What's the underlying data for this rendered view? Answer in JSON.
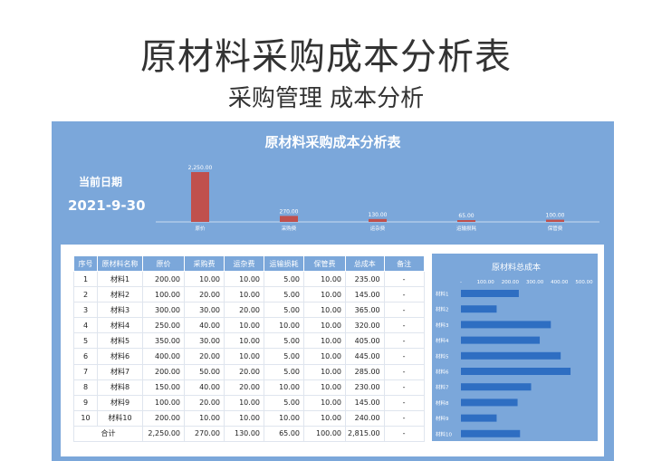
{
  "header": {
    "title": "原材料采购成本分析表",
    "subtitle": "采购管理  成本分析"
  },
  "sheet": {
    "title": "原材料采购成本分析表",
    "date_label": "当前日期",
    "date_value": "2021-9-30"
  },
  "table": {
    "headers": [
      "序号",
      "原材料名称",
      "原价",
      "采购费",
      "运杂费",
      "运输损耗",
      "保管费",
      "总成本",
      "备注"
    ],
    "rows": [
      [
        "1",
        "材料1",
        "200.00",
        "10.00",
        "10.00",
        "5.00",
        "10.00",
        "235.00",
        "-"
      ],
      [
        "2",
        "材料2",
        "100.00",
        "20.00",
        "10.00",
        "5.00",
        "10.00",
        "145.00",
        "-"
      ],
      [
        "3",
        "材料3",
        "300.00",
        "30.00",
        "20.00",
        "5.00",
        "10.00",
        "365.00",
        "-"
      ],
      [
        "4",
        "材料4",
        "250.00",
        "40.00",
        "10.00",
        "10.00",
        "10.00",
        "320.00",
        "-"
      ],
      [
        "5",
        "材料5",
        "350.00",
        "30.00",
        "10.00",
        "5.00",
        "10.00",
        "405.00",
        "-"
      ],
      [
        "6",
        "材料6",
        "400.00",
        "20.00",
        "10.00",
        "5.00",
        "10.00",
        "445.00",
        "-"
      ],
      [
        "7",
        "材料7",
        "200.00",
        "50.00",
        "20.00",
        "5.00",
        "10.00",
        "285.00",
        "-"
      ],
      [
        "8",
        "材料8",
        "150.00",
        "40.00",
        "20.00",
        "10.00",
        "10.00",
        "230.00",
        "-"
      ],
      [
        "9",
        "材料9",
        "100.00",
        "20.00",
        "10.00",
        "5.00",
        "10.00",
        "145.00",
        "-"
      ],
      [
        "10",
        "材料10",
        "200.00",
        "10.00",
        "10.00",
        "10.00",
        "10.00",
        "240.00",
        "-"
      ]
    ],
    "total": [
      "合计",
      "2,250.00",
      "270.00",
      "130.00",
      "65.00",
      "100.00",
      "2,815.00",
      "-"
    ]
  },
  "chart_data": [
    {
      "type": "bar",
      "categories": [
        "原价",
        "采购费",
        "运杂费",
        "运输损耗",
        "保管费"
      ],
      "values": [
        2250,
        270,
        130,
        65,
        100
      ],
      "data_labels": [
        "2,250.00",
        "270.00",
        "130.00",
        "65.00",
        "100.00"
      ],
      "title": "",
      "color": "#c0504d",
      "ylim": [
        0,
        2250
      ],
      "grid": false
    },
    {
      "type": "bar",
      "orientation": "horizontal",
      "title": "原材料总成本",
      "categories": [
        "材料1",
        "材料2",
        "材料3",
        "材料4",
        "材料5",
        "材料6",
        "材料7",
        "材料8",
        "材料9",
        "材料10"
      ],
      "values": [
        235,
        145,
        365,
        320,
        405,
        445,
        285,
        230,
        145,
        240
      ],
      "xticks": [
        "-",
        "100.00",
        "200.00",
        "300.00",
        "400.00",
        "500.00"
      ],
      "xlim": [
        0,
        500
      ],
      "axis_position": "top",
      "color": "#2e6ec2",
      "grid": false
    }
  ]
}
